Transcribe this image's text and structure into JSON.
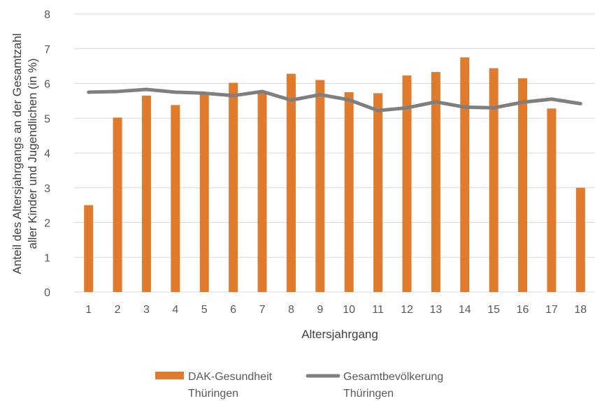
{
  "chart_data": {
    "type": "bar",
    "categories": [
      "1",
      "2",
      "3",
      "4",
      "5",
      "6",
      "7",
      "8",
      "9",
      "10",
      "11",
      "12",
      "13",
      "14",
      "15",
      "16",
      "17",
      "18"
    ],
    "series": [
      {
        "name": "DAK-Gesundheit Thüringen",
        "kind": "bar",
        "color": "#E07B2E",
        "values": [
          2.5,
          5.02,
          5.65,
          5.38,
          5.73,
          6.02,
          5.77,
          6.28,
          6.1,
          5.75,
          5.72,
          6.23,
          6.33,
          6.75,
          6.44,
          6.15,
          5.28,
          3.0
        ]
      },
      {
        "name": "Gesamtbevölkerung Thüringen",
        "kind": "line",
        "color": "#7F7F7F",
        "values": [
          5.75,
          5.77,
          5.83,
          5.75,
          5.72,
          5.65,
          5.77,
          5.52,
          5.68,
          5.53,
          5.22,
          5.3,
          5.47,
          5.32,
          5.3,
          5.46,
          5.55,
          5.42
        ]
      }
    ],
    "xlabel": "Altersjahrgang",
    "ylabel_lines": [
      "Anteil des Altersjahrgangs an der Gesamtzahl",
      "aller Kinder und Jugendlichen (in %)"
    ],
    "ylim": [
      0,
      8
    ],
    "yticks": [
      "0",
      "1",
      "2",
      "3",
      "4",
      "5",
      "6",
      "7",
      "8"
    ],
    "grid": true,
    "legend": {
      "placement": "bottom",
      "items": [
        {
          "line1": "DAK-Gesundheit",
          "line2": "Thüringen",
          "kind": "bar",
          "color": "#E07B2E"
        },
        {
          "line1": "Gesamtbevölkerung",
          "line2": "Thüringen",
          "kind": "line",
          "color": "#7F7F7F"
        }
      ]
    }
  }
}
